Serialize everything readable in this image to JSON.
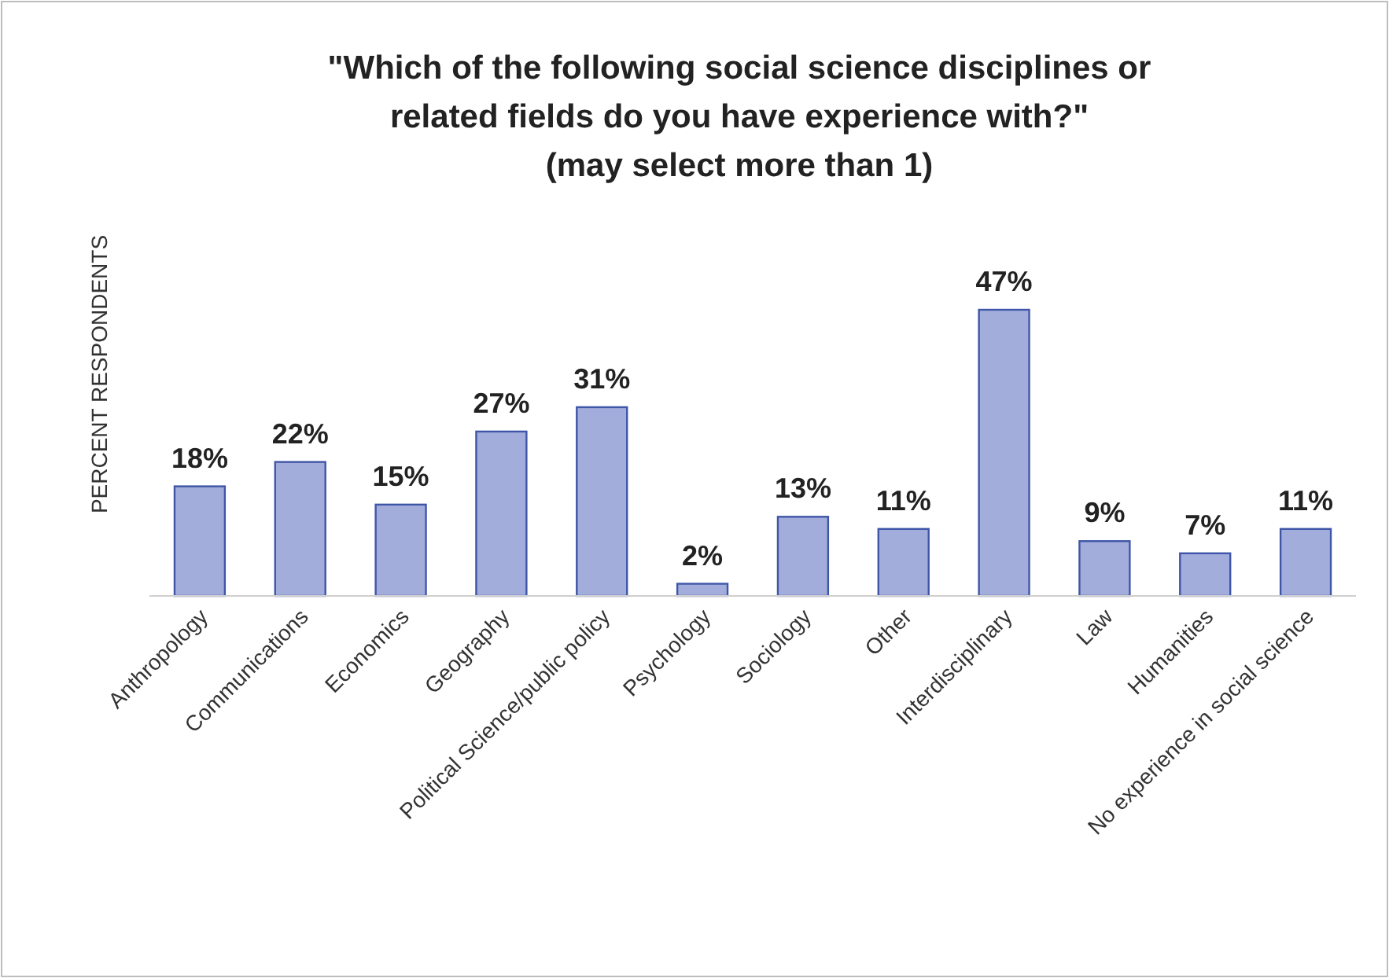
{
  "chart_data": {
    "type": "bar",
    "title": "\"Which of the following social science disciplines or\nrelated fields do you have experience with?\"\n(may select more than 1)",
    "ylabel": "PERCENT RESPONDENTS",
    "categories": [
      "Anthropology",
      "Communications",
      "Economics",
      "Geography",
      "Political Science/public policy",
      "Psychology",
      "Sociology",
      "Other",
      "Interdisciplinary",
      "Law",
      "Humanities",
      "No experience in social science"
    ],
    "values": [
      18,
      22,
      15,
      27,
      31,
      2,
      13,
      11,
      47,
      9,
      7,
      11
    ],
    "value_labels": [
      "18%",
      "22%",
      "15%",
      "27%",
      "31%",
      "2%",
      "13%",
      "11%",
      "47%",
      "9%",
      "7%",
      "11%"
    ],
    "color": "#a3addb"
  }
}
